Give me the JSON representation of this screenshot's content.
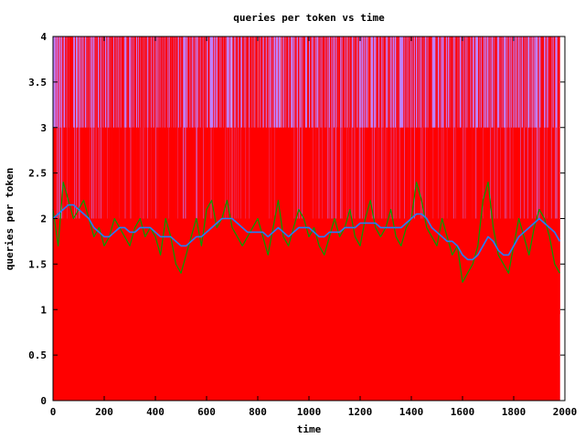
{
  "chart_data": {
    "type": "line",
    "title": "queries per token vs time",
    "xlabel": "time",
    "ylabel": "queries per token",
    "xlim": [
      0,
      2000
    ],
    "ylim": [
      0,
      4
    ],
    "x_ticks": [
      "0",
      "200",
      "400",
      "600",
      "800",
      "1000",
      "1200",
      "1400",
      "1600",
      "1800",
      "2000"
    ],
    "y_ticks": [
      "0",
      "0.5",
      "1",
      "1.5",
      "2",
      "2.5",
      "3",
      "3.5",
      "4"
    ],
    "grid": false,
    "legend": "none",
    "series": [
      {
        "kind": "per-token raw (impulses)",
        "color": "#c080ff",
        "range": [
          0,
          4
        ],
        "levels": [
          0,
          1,
          2,
          3,
          4
        ],
        "x_range": [
          0,
          1980
        ]
      },
      {
        "kind": "recent-window (impulses)",
        "color": "#ff0000",
        "range": [
          1,
          4
        ],
        "levels": [
          1,
          2,
          3,
          4
        ],
        "x_range": [
          0,
          1980
        ]
      },
      {
        "kind": "short moving average (line)",
        "color": "#00a000",
        "x": [
          0,
          20,
          40,
          60,
          80,
          100,
          120,
          140,
          160,
          180,
          200,
          220,
          240,
          260,
          280,
          300,
          320,
          340,
          360,
          380,
          400,
          420,
          440,
          460,
          480,
          500,
          520,
          540,
          560,
          580,
          600,
          620,
          640,
          660,
          680,
          700,
          720,
          740,
          760,
          780,
          800,
          820,
          840,
          860,
          880,
          900,
          920,
          940,
          960,
          980,
          1000,
          1020,
          1040,
          1060,
          1080,
          1100,
          1120,
          1140,
          1160,
          1180,
          1200,
          1220,
          1240,
          1260,
          1280,
          1300,
          1320,
          1340,
          1360,
          1380,
          1400,
          1420,
          1440,
          1460,
          1480,
          1500,
          1520,
          1540,
          1560,
          1580,
          1600,
          1620,
          1640,
          1660,
          1680,
          1700,
          1720,
          1740,
          1760,
          1780,
          1800,
          1820,
          1840,
          1860,
          1880,
          1900,
          1920,
          1940,
          1960,
          1980
        ],
        "values": [
          2.1,
          1.7,
          2.4,
          2.2,
          2.0,
          2.1,
          2.2,
          2.0,
          1.8,
          1.9,
          1.7,
          1.8,
          2.0,
          1.9,
          1.8,
          1.7,
          1.9,
          2.0,
          1.8,
          1.9,
          1.8,
          1.6,
          2.0,
          1.8,
          1.5,
          1.4,
          1.6,
          1.8,
          2.0,
          1.7,
          2.1,
          2.2,
          1.9,
          2.0,
          2.2,
          1.9,
          1.8,
          1.7,
          1.8,
          1.9,
          2.0,
          1.8,
          1.6,
          1.9,
          2.2,
          1.8,
          1.7,
          1.9,
          2.1,
          2.0,
          1.8,
          1.9,
          1.7,
          1.6,
          1.8,
          2.0,
          1.8,
          1.9,
          2.1,
          1.8,
          1.7,
          2.0,
          2.2,
          1.9,
          1.8,
          1.9,
          2.1,
          1.8,
          1.7,
          1.9,
          2.0,
          2.4,
          2.2,
          1.9,
          1.8,
          1.7,
          2.0,
          1.8,
          1.6,
          1.7,
          1.3,
          1.4,
          1.5,
          1.7,
          2.2,
          2.4,
          1.9,
          1.6,
          1.5,
          1.4,
          1.7,
          2.0,
          1.8,
          1.6,
          1.9,
          2.1,
          2.0,
          1.8,
          1.5,
          1.4
        ]
      },
      {
        "kind": "long moving average (line)",
        "color": "#2080ff",
        "x": [
          0,
          20,
          40,
          60,
          80,
          100,
          120,
          140,
          160,
          180,
          200,
          220,
          240,
          260,
          280,
          300,
          320,
          340,
          360,
          380,
          400,
          420,
          440,
          460,
          480,
          500,
          520,
          540,
          560,
          580,
          600,
          620,
          640,
          660,
          680,
          700,
          720,
          740,
          760,
          780,
          800,
          820,
          840,
          860,
          880,
          900,
          920,
          940,
          960,
          980,
          1000,
          1020,
          1040,
          1060,
          1080,
          1100,
          1120,
          1140,
          1160,
          1180,
          1200,
          1220,
          1240,
          1260,
          1280,
          1300,
          1320,
          1340,
          1360,
          1380,
          1400,
          1420,
          1440,
          1460,
          1480,
          1500,
          1520,
          1540,
          1560,
          1580,
          1600,
          1620,
          1640,
          1660,
          1680,
          1700,
          1720,
          1740,
          1760,
          1780,
          1800,
          1820,
          1840,
          1860,
          1880,
          1900,
          1920,
          1940,
          1960,
          1980
        ],
        "values": [
          2.0,
          2.05,
          2.1,
          2.15,
          2.15,
          2.1,
          2.05,
          2.0,
          1.9,
          1.85,
          1.8,
          1.8,
          1.85,
          1.9,
          1.9,
          1.85,
          1.85,
          1.9,
          1.9,
          1.9,
          1.85,
          1.8,
          1.8,
          1.8,
          1.75,
          1.7,
          1.7,
          1.75,
          1.8,
          1.8,
          1.85,
          1.9,
          1.95,
          2.0,
          2.0,
          2.0,
          1.95,
          1.9,
          1.85,
          1.85,
          1.85,
          1.85,
          1.8,
          1.85,
          1.9,
          1.85,
          1.8,
          1.85,
          1.9,
          1.9,
          1.9,
          1.85,
          1.8,
          1.8,
          1.85,
          1.85,
          1.85,
          1.9,
          1.9,
          1.9,
          1.95,
          1.95,
          1.95,
          1.95,
          1.9,
          1.9,
          1.9,
          1.9,
          1.9,
          1.95,
          2.0,
          2.05,
          2.05,
          2.0,
          1.9,
          1.85,
          1.8,
          1.75,
          1.75,
          1.7,
          1.6,
          1.55,
          1.55,
          1.6,
          1.7,
          1.8,
          1.75,
          1.65,
          1.6,
          1.6,
          1.7,
          1.8,
          1.85,
          1.9,
          1.95,
          2.0,
          1.95,
          1.9,
          1.85,
          1.75
        ]
      }
    ]
  }
}
